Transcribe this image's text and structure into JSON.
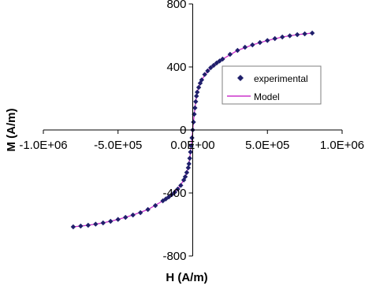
{
  "chart_data": {
    "type": "scatter",
    "xlabel": "H (A/m)",
    "ylabel": "M (A/m)",
    "xlim": [
      -1000000,
      1000000
    ],
    "ylim": [
      -800,
      800
    ],
    "x_ticks": [
      -1000000,
      -500000,
      0,
      500000,
      1000000
    ],
    "x_tick_labels": [
      "-1.0E+06",
      "-5.0E+05",
      "0.0E+00",
      "5.0E+05",
      "1.0E+06"
    ],
    "y_ticks": [
      -800,
      -400,
      0,
      400,
      800
    ],
    "y_tick_labels": [
      "-800",
      "-400",
      "0",
      "400",
      "800"
    ],
    "grid": false,
    "legend_position": "right",
    "series": [
      {
        "name": "experimental",
        "type": "scatter",
        "marker": "diamond",
        "color": "#1f1f6b",
        "x": [
          -800000,
          -750000,
          -700000,
          -650000,
          -600000,
          -550000,
          -500000,
          -450000,
          -400000,
          -350000,
          -300000,
          -250000,
          -200000,
          -180000,
          -160000,
          -140000,
          -120000,
          -100000,
          -80000,
          -60000,
          -50000,
          -40000,
          -30000,
          -25000,
          -20000,
          -15000,
          -10000,
          -5000,
          0,
          5000,
          10000,
          15000,
          20000,
          25000,
          30000,
          40000,
          50000,
          60000,
          80000,
          100000,
          120000,
          140000,
          160000,
          180000,
          200000,
          250000,
          300000,
          350000,
          400000,
          450000,
          500000,
          550000,
          600000,
          650000,
          700000,
          750000,
          800000
        ],
        "y": [
          -615,
          -610,
          -605,
          -598,
          -590,
          -580,
          -568,
          -555,
          -540,
          -525,
          -505,
          -480,
          -450,
          -438,
          -425,
          -410,
          -395,
          -375,
          -352,
          -318,
          -297,
          -270,
          -240,
          -215,
          -180,
          -140,
          -100,
          -50,
          0,
          50,
          100,
          140,
          180,
          215,
          240,
          270,
          297,
          318,
          352,
          375,
          395,
          410,
          425,
          438,
          450,
          480,
          505,
          525,
          540,
          555,
          568,
          580,
          590,
          598,
          605,
          610,
          615
        ]
      },
      {
        "name": "Model",
        "type": "line",
        "color": "#cc33cc",
        "x": [
          -800000,
          -700000,
          -600000,
          -500000,
          -400000,
          -300000,
          -200000,
          -150000,
          -100000,
          -70000,
          -50000,
          -30000,
          -20000,
          -10000,
          -5000,
          0,
          5000,
          10000,
          20000,
          30000,
          50000,
          70000,
          100000,
          150000,
          200000,
          300000,
          400000,
          500000,
          600000,
          700000,
          800000
        ],
        "y": [
          -615,
          -605,
          -590,
          -568,
          -540,
          -505,
          -450,
          -418,
          -375,
          -333,
          -297,
          -240,
          -180,
          -100,
          -50,
          0,
          50,
          100,
          180,
          240,
          297,
          333,
          375,
          418,
          450,
          505,
          540,
          568,
          590,
          605,
          615
        ]
      }
    ]
  }
}
